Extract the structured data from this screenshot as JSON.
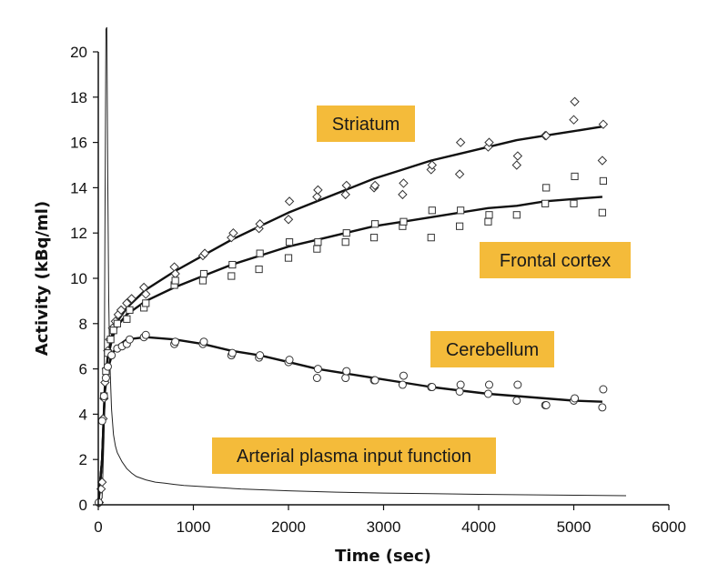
{
  "chart_data": {
    "type": "scatter",
    "xlabel": "Time (sec)",
    "ylabel": "Activity (kBq/ml)",
    "xlim": [
      0,
      6000
    ],
    "ylim": [
      0,
      20
    ],
    "xticks": [
      0,
      1000,
      2000,
      3000,
      4000,
      5000,
      6000
    ],
    "yticks": [
      0,
      2,
      4,
      6,
      8,
      10,
      12,
      14,
      16,
      18,
      20
    ],
    "grid": false,
    "annotations": [
      {
        "key": "striatum",
        "text": "Striatum"
      },
      {
        "key": "frontal",
        "text": "Frontal cortex"
      },
      {
        "key": "cerebellum",
        "text": "Cerebellum"
      },
      {
        "key": "plasma",
        "text": "Arterial plasma input function"
      }
    ],
    "series": [
      {
        "key": "striatum",
        "marker": "diamond",
        "points": [
          [
            10,
            0.1
          ],
          [
            30,
            0.7
          ],
          [
            40,
            1.0
          ],
          [
            50,
            3.8
          ],
          [
            60,
            4.7
          ],
          [
            70,
            5.4
          ],
          [
            85,
            6.0
          ],
          [
            100,
            6.8
          ],
          [
            120,
            7.3
          ],
          [
            150,
            7.8
          ],
          [
            180,
            8.1
          ],
          [
            210,
            8.4
          ],
          [
            240,
            8.6
          ],
          [
            300,
            8.9
          ],
          [
            350,
            9.1
          ],
          [
            480,
            9.6
          ],
          [
            500,
            9.3
          ],
          [
            800,
            10.5
          ],
          [
            810,
            10.2
          ],
          [
            1100,
            11.0
          ],
          [
            1120,
            11.1
          ],
          [
            1400,
            11.8
          ],
          [
            1420,
            12.0
          ],
          [
            1690,
            12.2
          ],
          [
            1700,
            12.4
          ],
          [
            2000,
            12.6
          ],
          [
            2010,
            13.4
          ],
          [
            2300,
            13.6
          ],
          [
            2310,
            13.9
          ],
          [
            2600,
            13.7
          ],
          [
            2610,
            14.1
          ],
          [
            2900,
            14.0
          ],
          [
            2910,
            14.1
          ],
          [
            3200,
            13.7
          ],
          [
            3210,
            14.2
          ],
          [
            3500,
            14.8
          ],
          [
            3510,
            15.0
          ],
          [
            3800,
            14.6
          ],
          [
            3810,
            16.0
          ],
          [
            4100,
            15.8
          ],
          [
            4110,
            16.0
          ],
          [
            4400,
            15.0
          ],
          [
            4410,
            15.4
          ],
          [
            4700,
            16.3
          ],
          [
            4710,
            16.3
          ],
          [
            5000,
            17.0
          ],
          [
            5010,
            17.8
          ],
          [
            5300,
            15.2
          ],
          [
            5310,
            16.8
          ]
        ]
      },
      {
        "key": "frontal",
        "marker": "square",
        "points": [
          [
            60,
            4.8
          ],
          [
            80,
            5.9
          ],
          [
            100,
            6.7
          ],
          [
            130,
            7.3
          ],
          [
            160,
            7.7
          ],
          [
            200,
            8.0
          ],
          [
            300,
            8.2
          ],
          [
            330,
            8.6
          ],
          [
            480,
            8.7
          ],
          [
            500,
            8.9
          ],
          [
            800,
            9.7
          ],
          [
            810,
            9.9
          ],
          [
            1100,
            9.9
          ],
          [
            1110,
            10.2
          ],
          [
            1400,
            10.1
          ],
          [
            1410,
            10.6
          ],
          [
            1690,
            10.4
          ],
          [
            1700,
            11.1
          ],
          [
            2000,
            10.9
          ],
          [
            2010,
            11.6
          ],
          [
            2300,
            11.3
          ],
          [
            2310,
            11.6
          ],
          [
            2600,
            11.6
          ],
          [
            2610,
            12.0
          ],
          [
            2900,
            11.8
          ],
          [
            2910,
            12.4
          ],
          [
            3200,
            12.3
          ],
          [
            3210,
            12.5
          ],
          [
            3500,
            11.8
          ],
          [
            3510,
            13.0
          ],
          [
            3800,
            12.3
          ],
          [
            3810,
            13.0
          ],
          [
            4100,
            12.5
          ],
          [
            4110,
            12.8
          ],
          [
            4400,
            12.8
          ],
          [
            4700,
            13.3
          ],
          [
            4710,
            14.0
          ],
          [
            5000,
            13.3
          ],
          [
            5010,
            14.5
          ],
          [
            5300,
            12.9
          ],
          [
            5310,
            14.3
          ]
        ]
      },
      {
        "key": "cerebellum",
        "marker": "circle",
        "points": [
          [
            5,
            0.1
          ],
          [
            40,
            3.7
          ],
          [
            60,
            4.8
          ],
          [
            80,
            5.6
          ],
          [
            100,
            6.1
          ],
          [
            140,
            6.6
          ],
          [
            200,
            6.9
          ],
          [
            250,
            7.0
          ],
          [
            300,
            7.1
          ],
          [
            330,
            7.3
          ],
          [
            480,
            7.4
          ],
          [
            500,
            7.5
          ],
          [
            800,
            7.1
          ],
          [
            810,
            7.2
          ],
          [
            1100,
            7.1
          ],
          [
            1110,
            7.2
          ],
          [
            1400,
            6.6
          ],
          [
            1410,
            6.7
          ],
          [
            1690,
            6.5
          ],
          [
            1700,
            6.6
          ],
          [
            2000,
            6.3
          ],
          [
            2010,
            6.4
          ],
          [
            2300,
            5.6
          ],
          [
            2310,
            6.0
          ],
          [
            2600,
            5.6
          ],
          [
            2610,
            5.9
          ],
          [
            2900,
            5.5
          ],
          [
            2910,
            5.5
          ],
          [
            3200,
            5.3
          ],
          [
            3210,
            5.7
          ],
          [
            3500,
            5.2
          ],
          [
            3510,
            5.2
          ],
          [
            3800,
            5.0
          ],
          [
            3810,
            5.3
          ],
          [
            4100,
            4.9
          ],
          [
            4110,
            5.3
          ],
          [
            4400,
            4.6
          ],
          [
            4410,
            5.3
          ],
          [
            4700,
            4.4
          ],
          [
            4710,
            4.4
          ],
          [
            5000,
            4.6
          ],
          [
            5010,
            4.7
          ],
          [
            5300,
            4.3
          ],
          [
            5310,
            5.1
          ]
        ]
      }
    ],
    "fits": [
      {
        "key": "striatum",
        "points": [
          [
            0,
            0
          ],
          [
            40,
            2.0
          ],
          [
            70,
            5.3
          ],
          [
            100,
            6.6
          ],
          [
            150,
            7.6
          ],
          [
            200,
            8.1
          ],
          [
            300,
            8.7
          ],
          [
            500,
            9.5
          ],
          [
            800,
            10.3
          ],
          [
            1100,
            11.0
          ],
          [
            1400,
            11.7
          ],
          [
            1700,
            12.3
          ],
          [
            2000,
            12.9
          ],
          [
            2300,
            13.4
          ],
          [
            2600,
            13.9
          ],
          [
            2900,
            14.4
          ],
          [
            3200,
            14.8
          ],
          [
            3500,
            15.2
          ],
          [
            3800,
            15.5
          ],
          [
            4100,
            15.8
          ],
          [
            4400,
            16.1
          ],
          [
            4700,
            16.3
          ],
          [
            5000,
            16.5
          ],
          [
            5300,
            16.7
          ]
        ]
      },
      {
        "key": "frontal",
        "points": [
          [
            0,
            0
          ],
          [
            40,
            2.0
          ],
          [
            70,
            5.2
          ],
          [
            100,
            6.5
          ],
          [
            150,
            7.4
          ],
          [
            200,
            7.9
          ],
          [
            300,
            8.4
          ],
          [
            500,
            9.0
          ],
          [
            800,
            9.6
          ],
          [
            1100,
            10.1
          ],
          [
            1400,
            10.6
          ],
          [
            1700,
            11.0
          ],
          [
            2000,
            11.4
          ],
          [
            2300,
            11.7
          ],
          [
            2600,
            12.0
          ],
          [
            2900,
            12.3
          ],
          [
            3200,
            12.5
          ],
          [
            3500,
            12.7
          ],
          [
            3800,
            12.9
          ],
          [
            4100,
            13.1
          ],
          [
            4400,
            13.2
          ],
          [
            4700,
            13.4
          ],
          [
            5000,
            13.5
          ],
          [
            5300,
            13.6
          ]
        ]
      },
      {
        "key": "cerebellum",
        "points": [
          [
            0,
            0
          ],
          [
            40,
            2.0
          ],
          [
            70,
            5.0
          ],
          [
            100,
            6.0
          ],
          [
            150,
            6.7
          ],
          [
            200,
            7.0
          ],
          [
            300,
            7.3
          ],
          [
            500,
            7.4
          ],
          [
            800,
            7.3
          ],
          [
            1100,
            7.1
          ],
          [
            1400,
            6.8
          ],
          [
            1700,
            6.6
          ],
          [
            2000,
            6.3
          ],
          [
            2300,
            6.0
          ],
          [
            2600,
            5.8
          ],
          [
            2900,
            5.6
          ],
          [
            3200,
            5.4
          ],
          [
            3500,
            5.2
          ],
          [
            3800,
            5.05
          ],
          [
            4100,
            4.9
          ],
          [
            4400,
            4.8
          ],
          [
            4700,
            4.7
          ],
          [
            5000,
            4.6
          ],
          [
            5300,
            4.55
          ]
        ]
      }
    ],
    "input_function": {
      "key": "plasma",
      "points": [
        [
          0,
          0
        ],
        [
          40,
          0.3
        ],
        [
          60,
          3.0
        ],
        [
          70,
          12.0
        ],
        [
          80,
          21.0
        ],
        [
          90,
          21.5
        ],
        [
          100,
          14.0
        ],
        [
          110,
          9.0
        ],
        [
          120,
          6.5
        ],
        [
          140,
          4.2
        ],
        [
          160,
          3.1
        ],
        [
          180,
          2.6
        ],
        [
          200,
          2.3
        ],
        [
          250,
          1.9
        ],
        [
          300,
          1.6
        ],
        [
          350,
          1.4
        ],
        [
          400,
          1.25
        ],
        [
          500,
          1.1
        ],
        [
          600,
          1.0
        ],
        [
          700,
          0.95
        ],
        [
          800,
          0.9
        ],
        [
          900,
          0.85
        ],
        [
          1500,
          0.7
        ],
        [
          2000,
          0.62
        ],
        [
          2500,
          0.56
        ],
        [
          3000,
          0.52
        ],
        [
          3500,
          0.49
        ],
        [
          4000,
          0.46
        ],
        [
          4500,
          0.44
        ],
        [
          5000,
          0.42
        ],
        [
          5550,
          0.4
        ]
      ]
    }
  }
}
